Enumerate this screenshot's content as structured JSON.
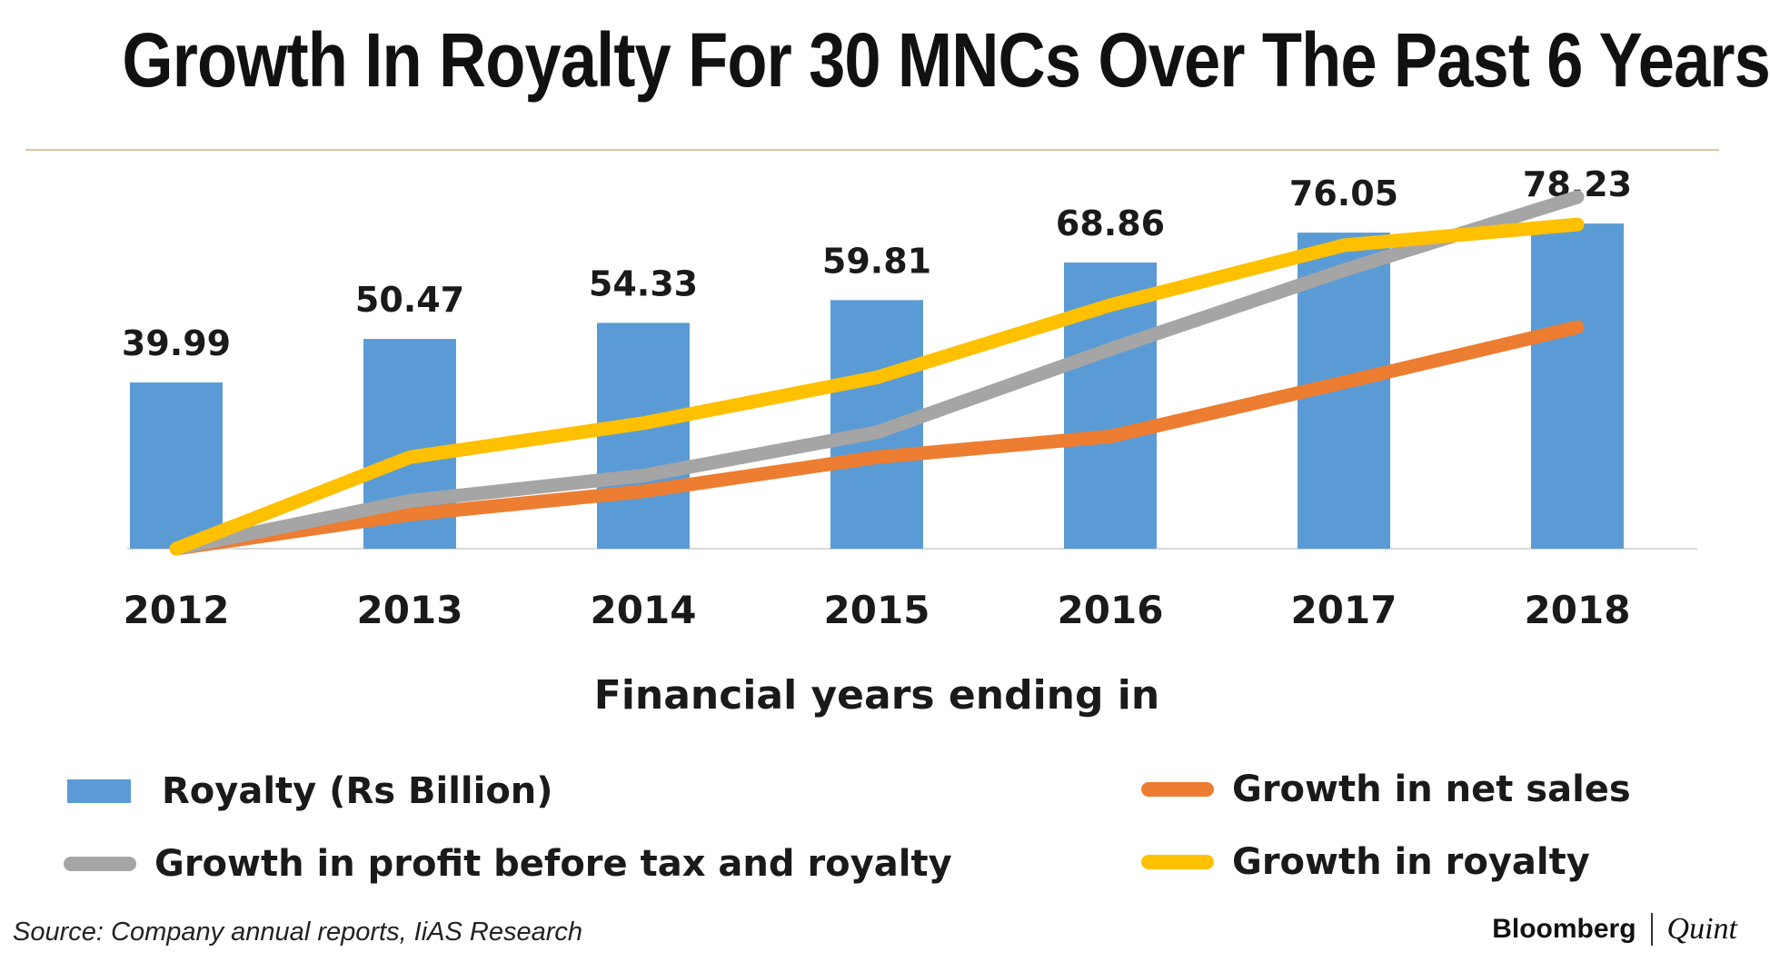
{
  "header": {
    "title": "Growth In Royalty For 30 MNCs Over The Past 6 Years"
  },
  "chart_data": {
    "type": "bar",
    "title": "Growth In Royalty For 30 MNCs Over The Past 6 Years",
    "xlabel": "Financial years ending in",
    "ylabel": "",
    "categories": [
      "2012",
      "2013",
      "2014",
      "2015",
      "2016",
      "2017",
      "2018"
    ],
    "ylim": [
      0,
      80
    ],
    "series": [
      {
        "name": "Royalty (Rs Billion)",
        "kind": "bar",
        "color": "#5b9bd5",
        "values": [
          39.99,
          50.47,
          54.33,
          59.81,
          68.86,
          76.05,
          78.23
        ],
        "labels": [
          "39.99",
          "50.47",
          "54.33",
          "59.81",
          "68.86",
          "76.05",
          "78.23"
        ]
      },
      {
        "name": "Growth in net sales",
        "kind": "line",
        "color": "#ed7d31",
        "values": [
          0,
          8.2,
          13.8,
          22.0,
          27.0,
          40.0,
          53.3
        ]
      },
      {
        "name": "Growth in profit before tax and royalty",
        "kind": "line",
        "color": "#a5a5a5",
        "values": [
          0,
          11.5,
          17.6,
          28.0,
          48.0,
          67.0,
          84.6
        ]
      },
      {
        "name": "Growth in royalty",
        "kind": "line",
        "color": "#ffc000",
        "values": [
          0,
          22.0,
          30.2,
          41.2,
          58.6,
          73.0,
          78.0
        ]
      }
    ],
    "legend": "bottom"
  },
  "legend": {
    "items": [
      {
        "label": "Royalty (Rs Billion)",
        "color": "#5b9bd5",
        "kind": "bar"
      },
      {
        "label": "Growth in net sales",
        "color": "#ed7d31",
        "kind": "line"
      },
      {
        "label": "Growth in profit before tax and royalty",
        "color": "#a5a5a5",
        "kind": "line"
      },
      {
        "label": "Growth in royalty",
        "color": "#ffc000",
        "kind": "line"
      }
    ]
  },
  "footer": {
    "source": "Source: Company annual reports, IiAS Research",
    "brand_primary": "Bloomberg",
    "brand_secondary": "Quint"
  }
}
